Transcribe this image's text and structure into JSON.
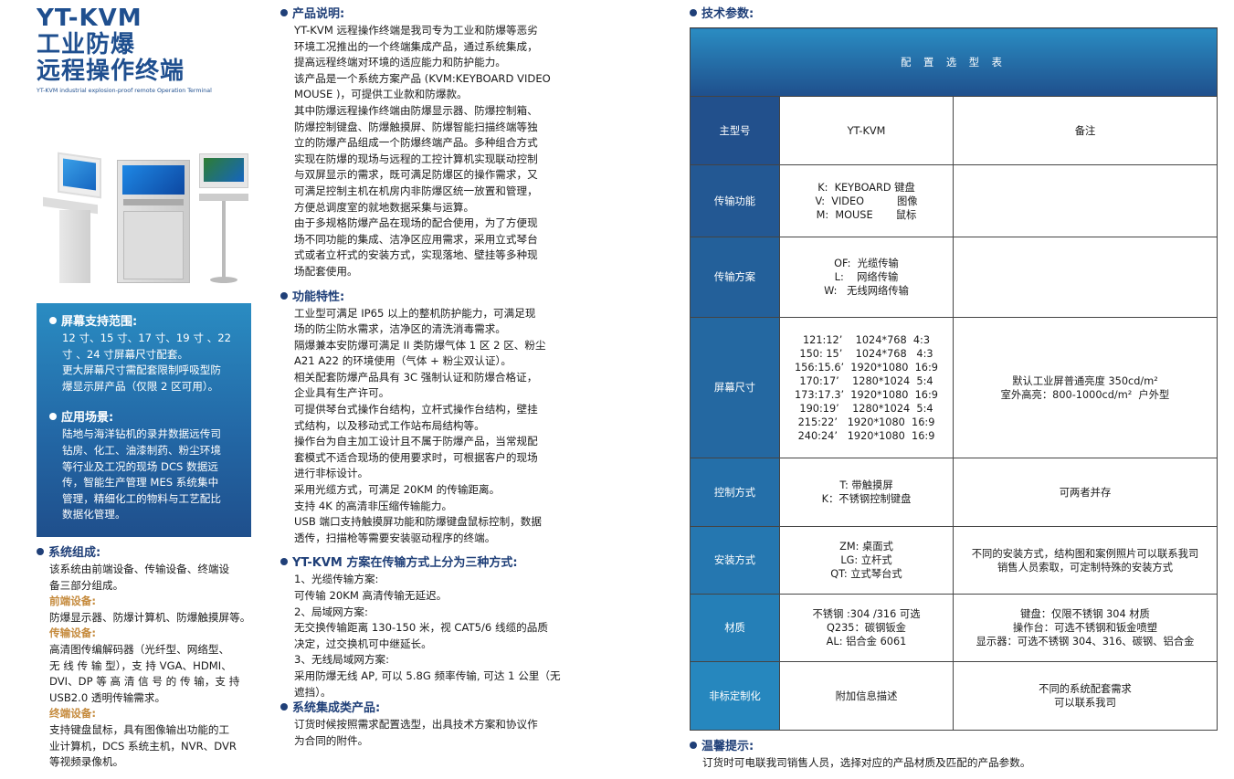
{
  "brand": {
    "title": "YT-KVM",
    "title_line2": "工业防爆",
    "title_line3": "远程操作终端",
    "subtitle": "YT-KVM industrial explosion-proof remote Operation Terminal"
  },
  "bluebox": {
    "screen": {
      "heading": "屏幕支持范围:",
      "lines": [
        "12 寸、15 寸、17 寸、19 寸 、22",
        "寸 、24 寸屏幕尺寸配套。",
        "更大屏幕尺寸需配套限制呼吸型防",
        "爆显示屏产品（仅限 2 区可用）。"
      ]
    },
    "scene": {
      "heading": "应用场景:",
      "lines": [
        "陆地与海洋钻机的录井数据远传司",
        "钻房、化工、油漆制药、粉尘环境",
        "等行业及工况的现场 DCS 数据远",
        "传，智能生产管理 MES 系统集中",
        "管理，精细化工的物料与工艺配比",
        "数据化管理。"
      ]
    }
  },
  "system": {
    "heading": "系统组成:",
    "intro": [
      "该系统由前端设备、传输设备、终端设",
      "备三部分组成。"
    ],
    "front_label": "前端设备:",
    "front": [
      "防爆显示器、防爆计算机、防爆触摸屏等。"
    ],
    "trans_label": "传输设备:",
    "trans": [
      "高清图传编解码器（光纤型、网络型、",
      "无 线 传 输 型），支 持 VGA、HDMI、",
      "DVI、DP 等 高 清 信 号 的 传 输，支 持",
      "USB2.0 透明传输需求。"
    ],
    "term_label": "终端设备:",
    "term": [
      "支持键盘鼠标，具有图像输出功能的工",
      "业计算机，DCS 系统主机，NVR、DVR",
      "等视频录像机。"
    ]
  },
  "product": {
    "heading": "产品说明:",
    "lines": [
      "YT-KVM 远程操作终端是我司专为工业和防爆等恶劣",
      "环境工况推出的一个终端集成产品，通过系统集成，",
      "提高远程终端对环境的适应能力和防护能力。",
      "该产品是一个系统方案产品 (KVM:KEYBOARD VIDEO",
      "MOUSE )，可提供工业款和防爆款。",
      "其中防爆远程操作终端由防爆显示器、防爆控制箱、",
      "防爆控制键盘、防爆触摸屏、防爆智能扫描终端等独",
      "立的防爆产品组成一个防爆终端产品。多种组合方式",
      "实现在防爆的现场与远程的工控计算机实现联动控制",
      "与双屏显示的需求，既可满足防爆区的操作需求，又",
      "可满足控制主机在机房内非防爆区统一放置和管理，",
      "方便总调度室的就地数据采集与运算。",
      "由于多规格防爆产品在现场的配合使用，为了方便现",
      "场不同功能的集成、洁净区应用需求，采用立式琴台",
      "式或者立杆式的安装方式，实现落地、壁挂等多种现",
      "场配套使用。"
    ]
  },
  "features": {
    "heading": "功能特性:",
    "lines": [
      "工业型可满足 IP65 以上的整机防护能力，可满足现",
      "场的防尘防水需求，洁净区的清洗消毒需求。",
      "隔爆兼本安防爆可满足 II 类防爆气体 1 区 2 区、粉尘",
      "A21 A22 的环境使用（气体 + 粉尘双认证）。",
      "相关配套防爆产品具有 3C 强制认证和防爆合格证，",
      "企业具有生产许可。",
      "可提供琴台式操作台结构，立杆式操作台结构，壁挂",
      "式结构，以及移动式工作站布局结构等。",
      "操作台为自主加工设计且不属于防爆产品，当常规配",
      "套模式不适合现场的使用要求时，可根据客户的现场",
      "进行非标设计。",
      "采用光缆方式，可满足 20KM 的传输距离。",
      "支持 4K 的高清非压缩传输能力。",
      "USB 端口支持触摸屏功能和防爆键盘鼠标控制，数据",
      "透传，扫描枪等需要安装驱动程序的终端。"
    ]
  },
  "modes": {
    "heading": "YT-KVM 方案在传输方式上分为三种方式:",
    "lines": [
      "1、光缆传输方案:",
      "可传输 20KM 高清传输无延迟。",
      "2、局域网方案:",
      "无交换传输距离 130-150 米，视 CAT5/6 线缆的品质",
      "决定，过交换机可中继延长。",
      "3、无线局域网方案:",
      "采用防爆无线 AP, 可以 5.8G 频率传输, 可达 1 公里（无",
      "遮挡）。"
    ]
  },
  "integration": {
    "heading": "系统集成类产品:",
    "lines": [
      "订货时候按照需求配置选型，出具技术方案和协议作",
      "为合同的附件。"
    ]
  },
  "tech": {
    "heading": "技术参数:",
    "table_title": "配 置 选 型 表",
    "rows": [
      {
        "label": "主型号",
        "c2": "YT-KVM",
        "c3": "备注"
      },
      {
        "label": "传输功能",
        "c2": "K:  KEYBOARD 键盘\nV:  VIDEO          图像\nM:  MOUSE       鼠标",
        "c3": ""
      },
      {
        "label": "传输方案",
        "c2": "OF:  光缆传输\nL:    网络传输\nW:   无线网络传输",
        "c3": ""
      },
      {
        "label": "屏幕尺寸",
        "c2": "121:12’    1024*768  4:3\n150: 15’    1024*768   4:3\n156:15.6’  1920*1080  16:9\n170:17’    1280*1024  5:4\n173:17.3’  1920*1080  16:9\n190:19’    1280*1024  5:4\n215:22’   1920*1080  16:9\n240:24’   1920*1080  16:9",
        "c3": "默认工业屏普通亮度 350cd/m²\n室外高亮：800-1000cd/m²  户外型"
      },
      {
        "label": "控制方式",
        "c2": "T: 带触摸屏\nK：不锈钢控制键盘",
        "c3": "可两者并存"
      },
      {
        "label": "安装方式",
        "c2": "ZM: 桌面式\nLG: 立杆式\nQT: 立式琴台式",
        "c3": "不同的安装方式，结构图和案例照片可以联系我司\n销售人员索取，可定制特殊的安装方式"
      },
      {
        "label": "材质",
        "c2": "不锈钢 :304 /316 可选\nQ235：碳钢钣金\nAL: 铝合金 6061",
        "c3": "键盘：仅限不锈钢 304 材质\n操作台：可选不锈钢和钣金喷塑\n显示器：可选不锈钢 304、316、碳钢、铝合金"
      },
      {
        "label": "非标定制化",
        "c2": "附加信息描述",
        "c3": "不同的系统配套需求\n可以联系我司"
      }
    ]
  },
  "tip": {
    "heading": "温馨提示:",
    "text": "订货时可电联我司销售人员，选择对应的产品材质及匹配的产品参数。"
  },
  "colors": {
    "brand_blue": "#1f4f8f",
    "accent_orange": "#c58a3c",
    "gradient_top": "#2a8cc2",
    "gradient_bottom": "#1f4f8c"
  }
}
